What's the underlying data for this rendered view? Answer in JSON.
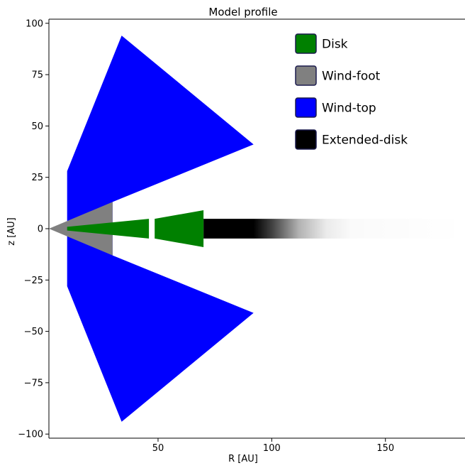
{
  "chart_data": {
    "type": "area",
    "title": "Model profile",
    "xlabel": "R [AU]",
    "ylabel": "z [AU]",
    "xlim": [
      2,
      185
    ],
    "ylim": [
      -102,
      102
    ],
    "xticks": [
      50,
      100,
      150
    ],
    "xtick_labels": [
      "50",
      "100",
      "150"
    ],
    "yticks": [
      100,
      75,
      50,
      25,
      0,
      -25,
      -50,
      -75,
      -100
    ],
    "ytick_labels": [
      "100",
      "75",
      "50",
      "25",
      "0",
      "−25",
      "−50",
      "−75",
      "−100"
    ],
    "grid": false,
    "legend_position": "top-right",
    "legend": [
      {
        "label": "Disk",
        "color": "#008000"
      },
      {
        "label": "Wind-foot",
        "color": "#808080"
      },
      {
        "label": "Wind-top",
        "color": "#0000ff"
      },
      {
        "label": "Extended-disk",
        "color": "#000000"
      }
    ],
    "regions": {
      "wind_top": {
        "color": "#0000ff",
        "polygon": [
          [
            10,
            28
          ],
          [
            10,
            -28
          ],
          [
            34,
            -94
          ],
          [
            92,
            -41
          ],
          [
            30,
            -13
          ],
          [
            30,
            13
          ],
          [
            92,
            41
          ],
          [
            34,
            94
          ]
        ]
      },
      "wind_foot": {
        "color": "#808080",
        "polygon": [
          [
            2,
            0
          ],
          [
            30,
            13
          ],
          [
            30,
            -13
          ]
        ]
      },
      "disk": {
        "color": "#008000",
        "segments": [
          [
            [
              10,
              0.9
            ],
            [
              46,
              4.8
            ],
            [
              46,
              -4.8
            ],
            [
              10,
              -0.9
            ]
          ],
          [
            [
              48.5,
              4.8
            ],
            [
              70,
              9
            ],
            [
              70,
              -9
            ],
            [
              48.5,
              -4.8
            ]
          ]
        ]
      },
      "extended_disk": {
        "color": "#000000",
        "r_start": 70,
        "r_end": 185,
        "half_height": 4.8,
        "fade": [
          [
            70,
            1
          ],
          [
            92,
            1
          ],
          [
            100,
            0.75
          ],
          [
            112,
            0.3
          ],
          [
            124,
            0.08
          ],
          [
            135,
            0.02
          ],
          [
            185,
            0
          ]
        ]
      }
    }
  }
}
